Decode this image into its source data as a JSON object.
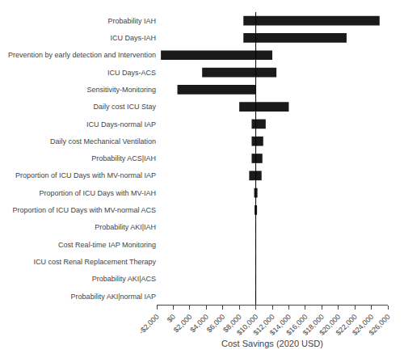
{
  "chart_data": {
    "type": "bar",
    "orientation": "horizontal",
    "categories": [
      "Probability IAH",
      "ICU Days-IAH",
      "Prevention by early detection and Intervention",
      "ICU Days-ACS",
      "Sensitivity-Monitoring",
      "Daily cost ICU Stay",
      "ICU Days-normal IAP",
      "Daily cost Mechanical Ventilation",
      "Probability ACS|IAH",
      "Proportion of ICU Days with MV-normal IAP",
      "Proportion of ICU Days with MV-IAH",
      "Proportion of ICU Days with MV-normal ACS",
      "Probability AKI|IAH",
      "Cost Real-time IAP Monitoring",
      "ICU cost Renal Replacement Therapy",
      "Probability AKI|ACS",
      "Probability AKI|normal IAP"
    ],
    "low": [
      8500,
      8500,
      -1500,
      3500,
      500,
      8000,
      9500,
      9500,
      9500,
      9200,
      9800,
      9850,
      9980,
      9990,
      9990,
      9990,
      9990
    ],
    "high": [
      25000,
      21000,
      12000,
      12500,
      10000,
      14000,
      11200,
      10900,
      10800,
      10700,
      10200,
      10150,
      10020,
      10010,
      10010,
      10010,
      10010
    ],
    "baseline": 10000,
    "color": "#1a1a1a",
    "xlabel": "Cost Savings (2020 USD)",
    "xlim": [
      -2000,
      26000
    ],
    "xticks": [
      {
        "value": -2000,
        "label": "-$2,000"
      },
      {
        "value": 0,
        "label": "$0"
      },
      {
        "value": 2000,
        "label": "$2,000"
      },
      {
        "value": 4000,
        "label": "$4,000"
      },
      {
        "value": 6000,
        "label": "$6,000"
      },
      {
        "value": 8000,
        "label": "$8,000"
      },
      {
        "value": 10000,
        "label": "$10,000"
      },
      {
        "value": 12000,
        "label": "$12,000"
      },
      {
        "value": 14000,
        "label": "$14,000"
      },
      {
        "value": 16000,
        "label": "$16,000"
      },
      {
        "value": 18000,
        "label": "$18,000"
      },
      {
        "value": 20000,
        "label": "$20,000"
      },
      {
        "value": 22000,
        "label": "$22,000"
      },
      {
        "value": 24000,
        "label": "$24,000"
      },
      {
        "value": 26000,
        "label": "$26,000"
      }
    ],
    "grid": false
  }
}
